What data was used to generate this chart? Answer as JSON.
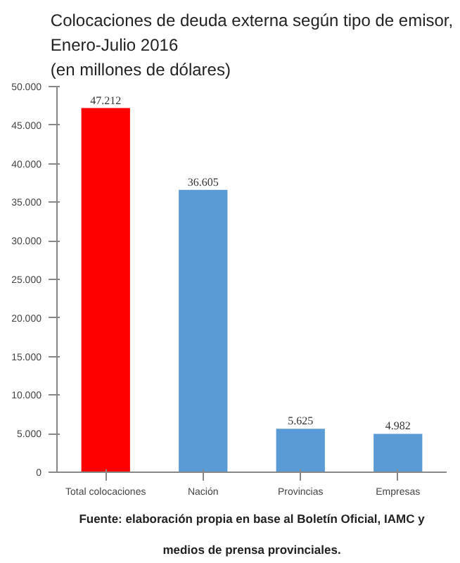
{
  "chart_data": {
    "type": "bar",
    "title": "Colocaciones de deuda externa según tipo de emisor,\nEnero-Julio 2016\n(en millones de dólares)",
    "categories": [
      "Total colocaciones",
      "Nación",
      "Provincias",
      "Empresas"
    ],
    "values": [
      47212,
      36605,
      5625,
      4982
    ],
    "colors": [
      "#ff0000",
      "#5b9bd5",
      "#5b9bd5",
      "#5b9bd5"
    ],
    "value_labels": [
      "47.212",
      "36.605",
      "5.625",
      "4.982"
    ],
    "ylim": [
      0,
      50000
    ],
    "yticks": [
      {
        "value": 0,
        "label": "0"
      },
      {
        "value": 5000,
        "label": "5.000"
      },
      {
        "value": 10000,
        "label": "10.000"
      },
      {
        "value": 15000,
        "label": "15.000"
      },
      {
        "value": 20000,
        "label": "20.000"
      },
      {
        "value": 25000,
        "label": "25.000"
      },
      {
        "value": 30000,
        "label": "30.000"
      },
      {
        "value": 35000,
        "label": "35.000"
      },
      {
        "value": 40000,
        "label": "40.000"
      },
      {
        "value": 45000,
        "label": "45.000"
      },
      {
        "value": 50000,
        "label": "50.000"
      }
    ],
    "grid": false,
    "annotations": [
      "Fuente: elaboración propia en base al Boletín Oficial, IAMC y medios de prensa provinciales."
    ]
  }
}
